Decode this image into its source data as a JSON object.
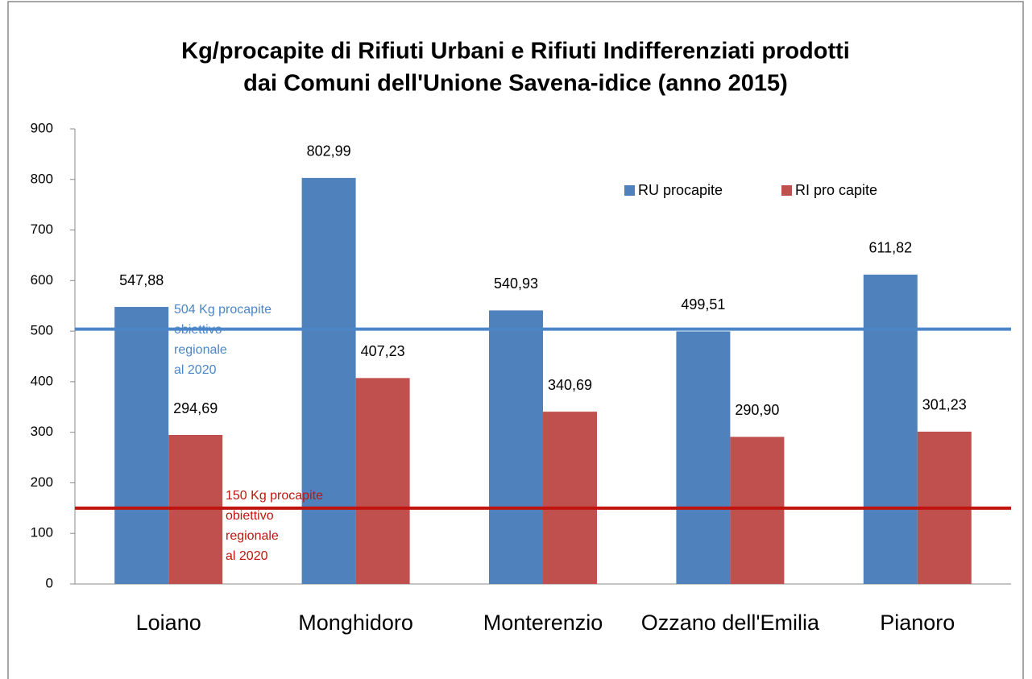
{
  "chart_data": {
    "type": "bar",
    "title": [
      "Kg/procapite di Rifiuti Urbani e Rifiuti Indifferenziati prodotti",
      "dai Comuni dell'Unione Savena-idice (anno 2015)"
    ],
    "categories": [
      "Loiano",
      "Monghidoro",
      "Monterenzio",
      "Ozzano dell'Emilia",
      "Pianoro"
    ],
    "series": [
      {
        "name": "RU procapite",
        "color": "#4f81bd",
        "values": [
          547.88,
          802.99,
          540.93,
          499.51,
          611.82
        ],
        "value_labels": [
          "547,88",
          "802,99",
          "540,93",
          "499,51",
          "611,82"
        ]
      },
      {
        "name": "RI pro capite",
        "color": "#c0504d",
        "values": [
          294.69,
          407.23,
          340.69,
          290.9,
          301.23
        ],
        "value_labels": [
          "294,69",
          "407,23",
          "340,69",
          "290,90",
          "301,23"
        ]
      }
    ],
    "reference_lines": [
      {
        "value": 504,
        "color": "#4a86c8",
        "label": [
          "504 Kg procapite",
          "obiettivo",
          "regionale",
          "al 2020"
        ]
      },
      {
        "value": 150,
        "color": "#c0150f",
        "label": [
          "150 Kg procapite",
          "obiettivo",
          "regionale",
          "al 2020"
        ]
      }
    ],
    "ylim": [
      0,
      900
    ],
    "yticks": [
      0,
      100,
      200,
      300,
      400,
      500,
      600,
      700,
      800,
      900
    ],
    "grid": false,
    "legend": "top-right"
  }
}
